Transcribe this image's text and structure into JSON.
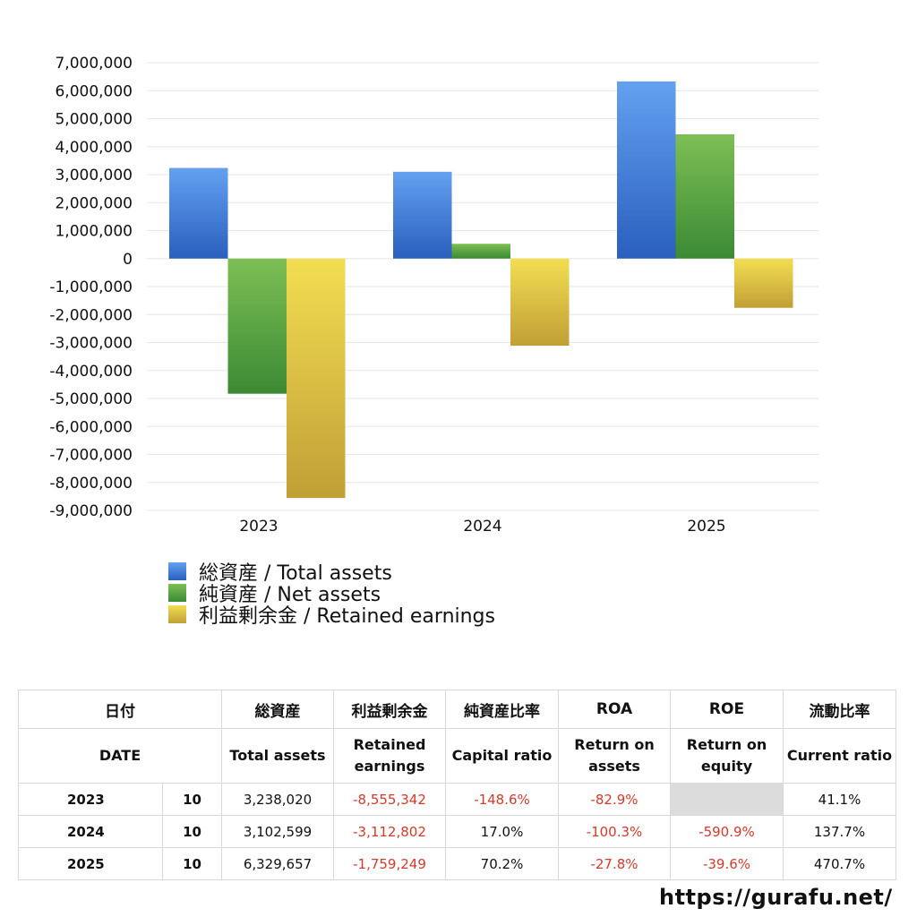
{
  "chart_data": {
    "type": "bar",
    "categories": [
      "2023",
      "2024",
      "2025"
    ],
    "series": [
      {
        "name": "総資産 / Total assets",
        "values": [
          3238020,
          3102599,
          6329657
        ],
        "color_top": "#63a1f0",
        "color_bottom": "#2a5fbe"
      },
      {
        "name": "純資産 / Net assets",
        "values": [
          -4830000,
          528000,
          4440000
        ],
        "color_top": "#7dbf55",
        "color_bottom": "#3b8a34"
      },
      {
        "name": "利益剰余金 / Retained earnings",
        "values": [
          -8555342,
          -3112802,
          -1759249
        ],
        "color_top": "#f2de52",
        "color_bottom": "#c19f36"
      }
    ],
    "ylim": [
      -9000000,
      7000000
    ],
    "ytick_labels": [
      "7,000,000",
      "6,000,000",
      "5,000,000",
      "4,000,000",
      "3,000,000",
      "2,000,000",
      "1,000,000",
      "0",
      "-1,000,000",
      "-2,000,000",
      "-3,000,000",
      "-4,000,000",
      "-5,000,000",
      "-6,000,000",
      "-7,000,000",
      "-8,000,000",
      "-9,000,000"
    ],
    "grid": true,
    "legend_position": "bottom-left"
  },
  "table": {
    "header_jp": {
      "date": "日付",
      "total_assets": "総資産",
      "retained_earnings": "利益剰余金",
      "capital_ratio": "純資産比率",
      "roa": "ROA",
      "roe": "ROE",
      "current_ratio": "流動比率"
    },
    "header_en": {
      "date": "DATE",
      "total_assets": "Total assets",
      "retained_earnings_1": "Retained",
      "retained_earnings_2": "earnings",
      "capital_ratio": "Capital ratio",
      "roa_1": "Return on",
      "roa_2": "assets",
      "roe_1": "Return on",
      "roe_2": "equity",
      "current_ratio": "Current ratio"
    },
    "rows": [
      {
        "year": "2023",
        "month": "10",
        "total_assets": "3,238,020",
        "retained_earnings": "-8,555,342",
        "capital_ratio": "-148.6%",
        "roa": "-82.9%",
        "roe": "",
        "current_ratio": "41.1%"
      },
      {
        "year": "2024",
        "month": "10",
        "total_assets": "3,102,599",
        "retained_earnings": "-3,112,802",
        "capital_ratio": "17.0%",
        "roa": "-100.3%",
        "roe": "-590.9%",
        "current_ratio": "137.7%"
      },
      {
        "year": "2025",
        "month": "10",
        "total_assets": "6,329,657",
        "retained_earnings": "-1,759,249",
        "capital_ratio": "70.2%",
        "roa": "-27.8%",
        "roe": "-39.6%",
        "current_ratio": "470.7%"
      }
    ]
  },
  "site_url": "https://gurafu.net/"
}
